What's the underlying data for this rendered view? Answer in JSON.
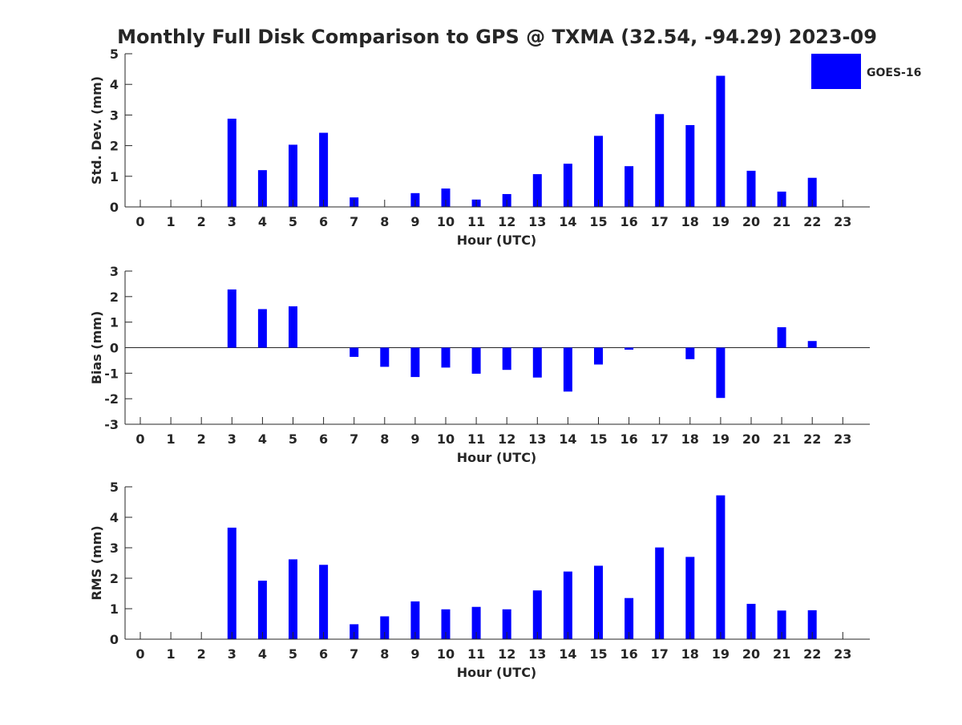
{
  "title": "Monthly Full Disk Comparison to GPS @ TXMA (32.54, -94.29) 2023-09",
  "legend": {
    "label": "GOES-16",
    "color": "#0000ff",
    "placement": "top-right"
  },
  "chart_data": [
    {
      "type": "bar",
      "ylabel": "Std. Dev. (mm)",
      "xlabel": "Hour (UTC)",
      "ylim": [
        0,
        5
      ],
      "yticks": [
        "0",
        "1",
        "2",
        "3",
        "4",
        "5"
      ],
      "categories": [
        "0",
        "1",
        "2",
        "3",
        "4",
        "5",
        "6",
        "7",
        "8",
        "9",
        "10",
        "11",
        "12",
        "13",
        "14",
        "15",
        "16",
        "17",
        "18",
        "19",
        "20",
        "21",
        "22",
        "23"
      ],
      "values": [
        null,
        null,
        null,
        2.88,
        1.2,
        2.03,
        2.42,
        0.31,
        null,
        0.45,
        0.6,
        0.24,
        0.42,
        1.07,
        1.41,
        2.32,
        1.33,
        3.03,
        2.67,
        4.28,
        1.18,
        0.5,
        0.95,
        null
      ],
      "series": [
        {
          "name": "GOES-16",
          "color": "#0000ff"
        }
      ]
    },
    {
      "type": "bar",
      "ylabel": "Bias (mm)",
      "xlabel": "Hour (UTC)",
      "ylim": [
        -3,
        3
      ],
      "yticks": [
        "-3",
        "-2",
        "-1",
        "0",
        "1",
        "2",
        "3"
      ],
      "categories": [
        "0",
        "1",
        "2",
        "3",
        "4",
        "5",
        "6",
        "7",
        "8",
        "9",
        "10",
        "11",
        "12",
        "13",
        "14",
        "15",
        "16",
        "17",
        "18",
        "19",
        "20",
        "21",
        "22",
        "23"
      ],
      "values": [
        null,
        null,
        null,
        2.28,
        1.51,
        1.62,
        null,
        -0.36,
        -0.75,
        -1.15,
        -0.78,
        -1.02,
        -0.87,
        -1.17,
        -1.72,
        -0.66,
        -0.08,
        null,
        -0.45,
        -1.97,
        null,
        0.8,
        0.26,
        null
      ],
      "series": [
        {
          "name": "GOES-16",
          "color": "#0000ff"
        }
      ]
    },
    {
      "type": "bar",
      "ylabel": "RMS (mm)",
      "xlabel": "Hour (UTC)",
      "ylim": [
        0,
        5
      ],
      "yticks": [
        "0",
        "1",
        "2",
        "3",
        "4",
        "5"
      ],
      "categories": [
        "0",
        "1",
        "2",
        "3",
        "4",
        "5",
        "6",
        "7",
        "8",
        "9",
        "10",
        "11",
        "12",
        "13",
        "14",
        "15",
        "16",
        "17",
        "18",
        "19",
        "20",
        "21",
        "22",
        "23"
      ],
      "values": [
        null,
        null,
        null,
        3.66,
        1.92,
        2.62,
        2.44,
        0.49,
        0.75,
        1.24,
        0.98,
        1.06,
        0.98,
        1.6,
        2.22,
        2.41,
        1.35,
        3.01,
        2.7,
        4.72,
        1.16,
        0.94,
        0.95,
        null
      ],
      "series": [
        {
          "name": "GOES-16",
          "color": "#0000ff"
        }
      ]
    }
  ]
}
